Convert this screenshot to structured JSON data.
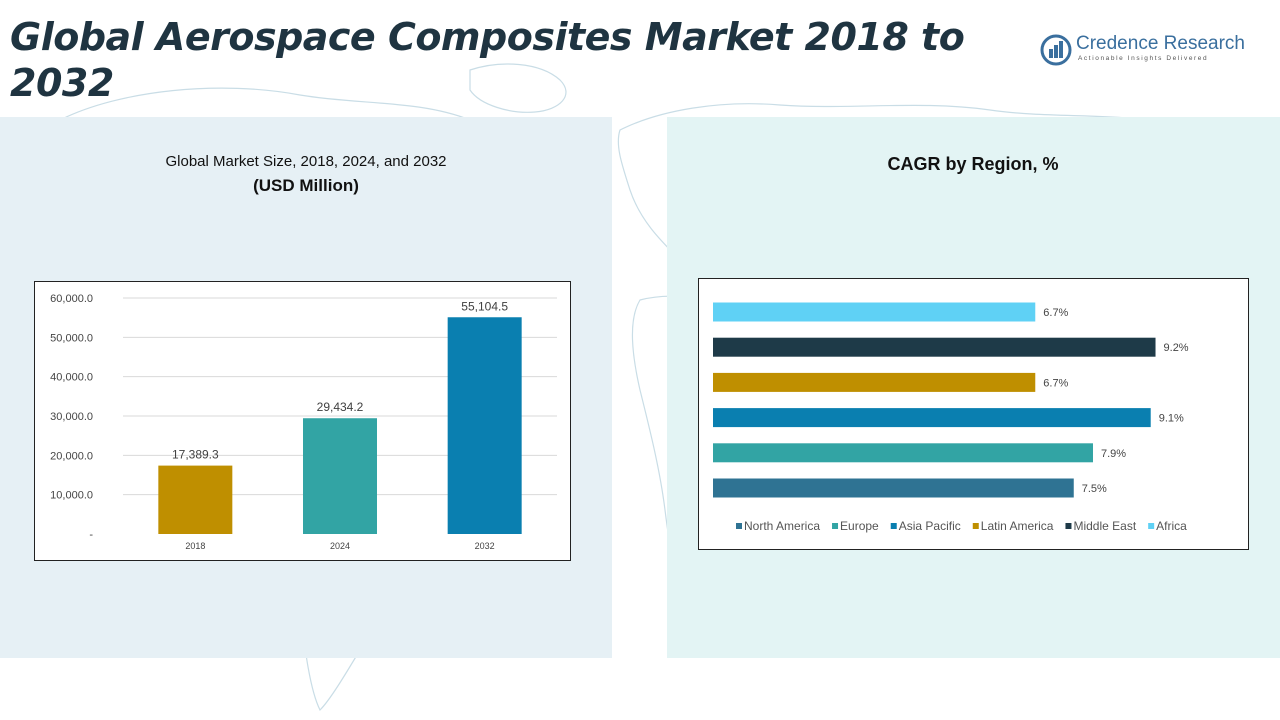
{
  "header": {
    "title": "Global Aerospace Composites Market 2018 to 2032",
    "brand_name": "Credence Research",
    "brand_tagline": "Actionable Insights Delivered"
  },
  "left_panel": {
    "subtitle": "Global Market Size, 2018, 2024, and 2032",
    "subtitle_unit": "(USD Million)"
  },
  "right_panel": {
    "subtitle": "CAGR by Region, %"
  },
  "colors": {
    "gold": "#bf8f00",
    "teal": "#32a4a4",
    "blue": "#0a7fb0",
    "dark": "#1e3a48",
    "sky": "#5fd1f5",
    "steel": "#2f7393"
  },
  "chart_data": [
    {
      "type": "bar",
      "categories": [
        "2018",
        "2024",
        "2032"
      ],
      "values": [
        17389.3,
        29434.2,
        55104.5
      ],
      "value_labels": [
        "17,389.3",
        "29,434.2",
        "55,104.5"
      ],
      "bar_colors": [
        "#bf8f00",
        "#32a4a4",
        "#0a7fb0"
      ],
      "ylim": [
        0,
        60000
      ],
      "yticks": [
        0,
        10000,
        20000,
        30000,
        40000,
        50000,
        60000
      ],
      "ytick_labels": [
        "-",
        "10,000.0",
        "20,000.0",
        "30,000.0",
        "40,000.0",
        "50,000.0",
        "60,000.0"
      ],
      "grid": true
    },
    {
      "type": "bar",
      "orientation": "horizontal",
      "series": [
        {
          "name": "North America",
          "value": 7.5,
          "label": "7.5%",
          "color": "#2f7393"
        },
        {
          "name": "Europe",
          "value": 7.9,
          "label": "7.9%",
          "color": "#32a4a4"
        },
        {
          "name": "Asia Pacific",
          "value": 9.1,
          "label": "9.1%",
          "color": "#0a7fb0"
        },
        {
          "name": "Latin America",
          "value": 6.7,
          "label": "6.7%",
          "color": "#bf8f00"
        },
        {
          "name": "Middle East",
          "value": 9.2,
          "label": "9.2%",
          "color": "#1e3a48"
        },
        {
          "name": "Africa",
          "value": 6.7,
          "label": "6.7%",
          "color": "#5fd1f5"
        }
      ],
      "xlim": [
        0,
        10
      ],
      "legend": "bottom"
    }
  ]
}
